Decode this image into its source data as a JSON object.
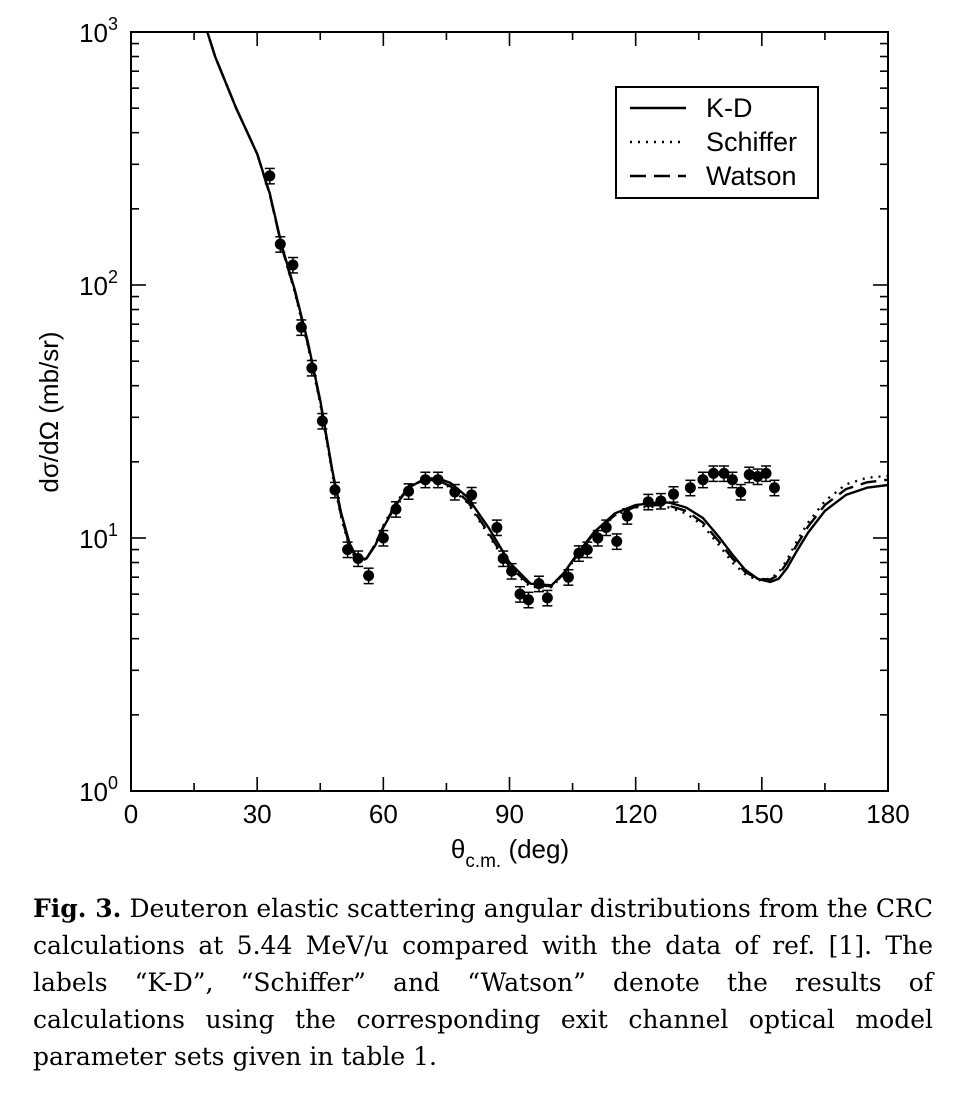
{
  "chart_data": {
    "type": "line",
    "title": "",
    "xlabel_main": "θ",
    "xlabel_sub": "c.m.",
    "xlabel_tail": " (deg)",
    "ylabel": "dσ/dΩ (mb/sr)",
    "xlim": [
      0,
      180
    ],
    "ylim": [
      1,
      1000
    ],
    "yscale": "log",
    "x_ticks": [
      0,
      30,
      60,
      90,
      120,
      150,
      180
    ],
    "y_ticks": [
      {
        "base": "10",
        "exp": "0"
      },
      {
        "base": "10",
        "exp": "1"
      },
      {
        "base": "10",
        "exp": "2"
      },
      {
        "base": "10",
        "exp": "3"
      }
    ],
    "grid": false,
    "legend_position": "top-right",
    "series": [
      {
        "name": "K-D",
        "style": "solid",
        "color": "#000000",
        "x": [
          17,
          20,
          25,
          30,
          33,
          36,
          39,
          42,
          45,
          48,
          50,
          52,
          54,
          56,
          58,
          60,
          63,
          66,
          70,
          73,
          76,
          80,
          85,
          90,
          95,
          100,
          103,
          106,
          110,
          115,
          120,
          125,
          128,
          132,
          136,
          140,
          143,
          146,
          149,
          152,
          154,
          156,
          158,
          161,
          165,
          170,
          175,
          180
        ],
        "y": [
          1150,
          800,
          500,
          330,
          230,
          140,
          95,
          60,
          35,
          18,
          12.5,
          9.5,
          8.2,
          8.3,
          9.3,
          11,
          13.5,
          15.8,
          17.2,
          17.2,
          16.5,
          14.5,
          11,
          8,
          6.6,
          6.5,
          7.3,
          8.6,
          10.5,
          12.5,
          13.5,
          13.8,
          13.8,
          13.2,
          12,
          10,
          8.6,
          7.5,
          6.9,
          6.7,
          6.9,
          7.6,
          8.7,
          10.5,
          12.8,
          14.8,
          15.8,
          16.2
        ]
      },
      {
        "name": "Schiffer",
        "style": "dotted",
        "color": "#000000",
        "x": [
          17,
          20,
          25,
          30,
          33,
          36,
          39,
          42,
          45,
          48,
          50,
          52,
          54,
          56,
          58,
          60,
          63,
          66,
          70,
          73,
          76,
          80,
          85,
          90,
          95,
          100,
          103,
          106,
          110,
          115,
          120,
          125,
          128,
          132,
          136,
          140,
          143,
          146,
          149,
          152,
          154,
          156,
          158,
          161,
          165,
          170,
          175,
          180
        ],
        "y": [
          1150,
          800,
          500,
          330,
          228,
          138,
          93,
          58,
          34,
          17.5,
          12,
          9.1,
          8.0,
          8.3,
          9.4,
          11.2,
          13.8,
          16.0,
          17.0,
          16.8,
          15.8,
          13.8,
          10.3,
          7.6,
          6.4,
          6.4,
          7.2,
          8.5,
          10.4,
          12.3,
          13.2,
          13.3,
          13.2,
          12.5,
          11.2,
          9.3,
          8.0,
          7.2,
          6.8,
          6.9,
          7.3,
          8.2,
          9.5,
          11.5,
          14.0,
          16.3,
          17.3,
          17.6
        ]
      },
      {
        "name": "Watson",
        "style": "dashed",
        "color": "#000000",
        "x": [
          17,
          20,
          25,
          30,
          33,
          36,
          39,
          42,
          45,
          48,
          50,
          52,
          54,
          56,
          58,
          60,
          63,
          66,
          70,
          73,
          76,
          80,
          85,
          90,
          95,
          100,
          103,
          106,
          110,
          115,
          120,
          125,
          128,
          132,
          136,
          140,
          143,
          146,
          149,
          152,
          154,
          156,
          158,
          161,
          165,
          170,
          175,
          180
        ],
        "y": [
          1150,
          800,
          500,
          330,
          228,
          138,
          94,
          59,
          34.5,
          17.8,
          12.2,
          9.3,
          8.1,
          8.3,
          9.4,
          11.1,
          13.6,
          15.9,
          17.0,
          16.9,
          16.0,
          14.0,
          10.5,
          7.7,
          6.5,
          6.45,
          7.25,
          8.5,
          10.4,
          12.3,
          13.3,
          13.5,
          13.4,
          12.8,
          11.5,
          9.6,
          8.3,
          7.35,
          6.9,
          6.85,
          7.15,
          8.0,
          9.2,
          11.1,
          13.5,
          15.6,
          16.6,
          17.0
        ]
      }
    ],
    "data_points": {
      "x": [
        33,
        35.5,
        38.5,
        40.5,
        43,
        45.5,
        48.5,
        51.5,
        54,
        56.5,
        60,
        63,
        66,
        70,
        73,
        77,
        81,
        87,
        88.5,
        90.5,
        92.5,
        94.5,
        97,
        99,
        104,
        106.5,
        108.5,
        111,
        113,
        115.5,
        118,
        123,
        126,
        129,
        133,
        136,
        138.5,
        141,
        143,
        145,
        147,
        149,
        151,
        153
      ],
      "y": [
        270,
        145,
        120,
        68,
        47,
        29,
        15.5,
        9.0,
        8.3,
        7.1,
        10,
        13,
        15.3,
        17,
        17,
        15.2,
        14.8,
        11,
        8.3,
        7.4,
        6,
        5.7,
        6.6,
        5.8,
        7.0,
        8.7,
        9.0,
        10,
        11,
        9.7,
        12.2,
        13.9,
        14,
        14.9,
        15.8,
        17,
        18,
        18,
        17,
        15.2,
        17.8,
        17.5,
        18,
        15.8
      ],
      "err_frac": 0.07
    }
  },
  "caption": {
    "label": "Fig. 3.",
    "text": " Deuteron elastic scattering angular distributions from the CRC calculations at 5.44 MeV/u compared with the data of ref. [1]. The labels “K-D”, “Schiffer” and “Watson” denote the results of calculations using the corresponding exit channel optical model parameter sets given in table 1."
  }
}
